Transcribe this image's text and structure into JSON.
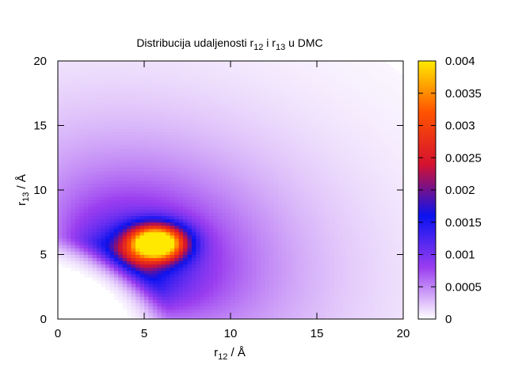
{
  "chart_data": {
    "type": "heatmap",
    "title": {
      "prefix": "Distribucija udaljenosti r",
      "sub1": "12",
      "mid": " i r",
      "sub2": "13",
      "suffix": " u DMC"
    },
    "xlabel": {
      "base": "r",
      "sub": "12",
      "unit": " / Å"
    },
    "ylabel": {
      "base": "r",
      "sub": "13",
      "unit": " / Å"
    },
    "xlim": [
      0,
      20
    ],
    "ylim": [
      0,
      20
    ],
    "xticks": [
      "0",
      "5",
      "10",
      "15",
      "20"
    ],
    "yticks": [
      "0",
      "5",
      "10",
      "15",
      "20"
    ],
    "colorbar": {
      "range": [
        0,
        0.004
      ],
      "ticks": [
        "0",
        "0.0005",
        "0.001",
        "0.0015",
        "0.002",
        "0.0025",
        "0.003",
        "0.0035",
        "0.004"
      ],
      "palette": [
        "#ffffff",
        "#9a3df0",
        "#0a12f0",
        "#d5122f",
        "#ff5200",
        "#ffe900"
      ]
    },
    "peak": {
      "x": 5.7,
      "y": 5.9,
      "value": 0.0041
    },
    "grid": false
  }
}
